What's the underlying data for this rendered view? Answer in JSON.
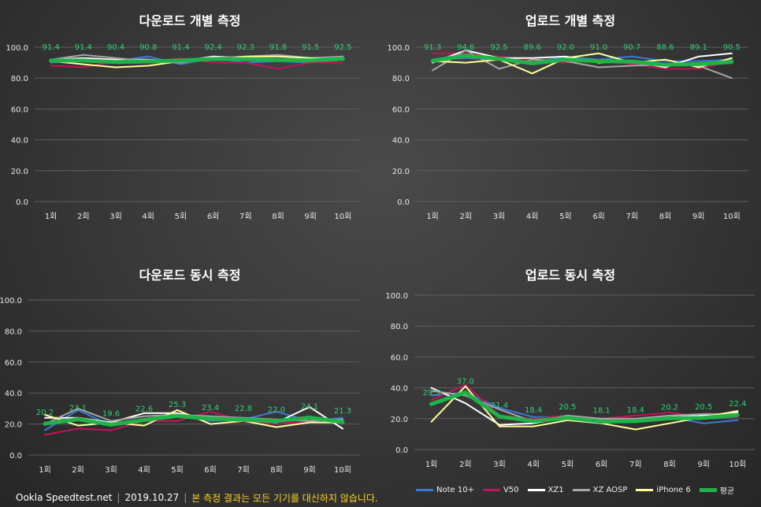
{
  "footer": {
    "brand": "Ookla Speedtest.net",
    "date": "2019.10.27",
    "note": "본 측정 결과는 모든 기기를 대신하지 않습니다."
  },
  "legend": [
    {
      "name": "Note 10+",
      "color": "#3c78d8"
    },
    {
      "name": "V50",
      "color": "#c0145a"
    },
    {
      "name": "XZ1",
      "color": "#ffffff"
    },
    {
      "name": "XZ AOSP",
      "color": "#a6a6a6"
    },
    {
      "name": "iPhone 6",
      "color": "#ffff99"
    },
    {
      "name": "평균",
      "color": "#1fb34a"
    }
  ],
  "chart_data": [
    {
      "type": "line",
      "title": "다운로드 개별 측정",
      "categories": [
        "1회",
        "2회",
        "3회",
        "4회",
        "5회",
        "6회",
        "7회",
        "8회",
        "9회",
        "10회"
      ],
      "y_ticks": [
        "0.0",
        "20.0",
        "40.0",
        "60.0",
        "80.0",
        "100.0"
      ],
      "ylim": [
        0,
        100
      ],
      "series": [
        {
          "name": "Note 10+",
          "values": [
            90,
            92,
            91,
            94,
            89,
            93,
            90,
            91,
            90,
            92
          ]
        },
        {
          "name": "V50",
          "values": [
            88,
            87,
            91,
            90,
            93,
            90,
            90,
            86,
            90,
            90
          ]
        },
        {
          "name": "XZ1",
          "values": [
            92,
            93,
            92,
            92,
            91,
            94,
            93,
            92,
            91,
            93
          ]
        },
        {
          "name": "XZ AOSP",
          "values": [
            92,
            95,
            93,
            91,
            90,
            93,
            94,
            95,
            93,
            94
          ]
        },
        {
          "name": "iPhone 6",
          "values": [
            91,
            89,
            87,
            88,
            91,
            92,
            94,
            94,
            93,
            92
          ]
        },
        {
          "name": "평균",
          "values": [
            91.4,
            91.4,
            90.4,
            90.8,
            91.4,
            92.4,
            92.3,
            91.8,
            91.5,
            92.5
          ]
        }
      ],
      "data_labels": [
        "91.4",
        "91.4",
        "90.4",
        "90.8",
        "91.4",
        "92.4",
        "92.3",
        "91.8",
        "91.5",
        "92.5"
      ]
    },
    {
      "type": "line",
      "title": "업로드 개별 측정",
      "categories": [
        "1회",
        "2회",
        "3회",
        "4회",
        "5회",
        "6회",
        "7회",
        "8회",
        "9회",
        "10회"
      ],
      "y_ticks": [
        "0.0",
        "20.0",
        "40.0",
        "60.0",
        "80.0",
        "100.0"
      ],
      "ylim": [
        0,
        100
      ],
      "series": [
        {
          "name": "Note 10+",
          "values": [
            92,
            93,
            92,
            90,
            94,
            92,
            94,
            91,
            91,
            92
          ]
        },
        {
          "name": "V50",
          "values": [
            96,
            96,
            94,
            91,
            90,
            92,
            89,
            86,
            86,
            91
          ]
        },
        {
          "name": "XZ1",
          "values": [
            90,
            98,
            93,
            93,
            94,
            90,
            91,
            87,
            94,
            96
          ]
        },
        {
          "name": "XZ AOSP",
          "values": [
            85,
            98,
            86,
            92,
            91,
            87,
            88,
            89,
            88,
            80
          ]
        },
        {
          "name": "iPhone 6",
          "values": [
            91,
            90,
            92,
            83,
            93,
            96,
            90,
            92,
            87,
            93
          ]
        },
        {
          "name": "평균",
          "values": [
            91.3,
            94.6,
            92.5,
            89.6,
            92.0,
            91.0,
            90.7,
            88.6,
            89.1,
            90.5
          ]
        }
      ],
      "data_labels": [
        "91.3",
        "94.6",
        "92.5",
        "89.6",
        "92.0",
        "91.0",
        "90.7",
        "88.6",
        "89.1",
        "90.5"
      ]
    },
    {
      "type": "line",
      "title": "다운로드 동시 측정",
      "categories": [
        "1회",
        "2회",
        "3회",
        "4회",
        "5회",
        "6회",
        "7회",
        "8회",
        "9회",
        "10회"
      ],
      "y_ticks": [
        "0.0",
        "20.0",
        "40.0",
        "60.0",
        "80.0",
        "100.0"
      ],
      "ylim": [
        0,
        100
      ],
      "series": [
        {
          "name": "Note 10+",
          "values": [
            16,
            29,
            19,
            22,
            25,
            22,
            23,
            28,
            22,
            24
          ]
        },
        {
          "name": "V50",
          "values": [
            13,
            17,
            16,
            22,
            22,
            28,
            22,
            20,
            22,
            21
          ]
        },
        {
          "name": "XZ1",
          "values": [
            24,
            24,
            21,
            27,
            27,
            23,
            23,
            21,
            31,
            17
          ]
        },
        {
          "name": "XZ AOSP",
          "values": [
            20,
            30,
            22,
            25,
            26,
            25,
            24,
            23,
            22,
            23
          ]
        },
        {
          "name": "iPhone 6",
          "values": [
            26,
            19,
            21,
            19,
            29,
            20,
            22,
            18,
            21,
            21
          ]
        },
        {
          "name": "평균",
          "values": [
            20.2,
            23.1,
            19.6,
            22.6,
            25.3,
            23.4,
            22.8,
            22.0,
            24.1,
            21.3
          ]
        }
      ],
      "data_labels": [
        "20.2",
        "23.1",
        "19.6",
        "22.6",
        "25.3",
        "23.4",
        "22.8",
        "22.0",
        "24.1",
        "21.3"
      ]
    },
    {
      "type": "line",
      "title": "업로드 동시 측정",
      "categories": [
        "1회",
        "2회",
        "3회",
        "4회",
        "5회",
        "6회",
        "7회",
        "8회",
        "9회",
        "10회"
      ],
      "y_ticks": [
        "0.0",
        "20.0",
        "40.0",
        "60.0",
        "80.0",
        "100.0"
      ],
      "ylim": [
        0,
        100
      ],
      "series": [
        {
          "name": "Note 10+",
          "values": [
            35,
            37,
            27,
            21,
            21,
            19,
            18,
            21,
            17,
            19
          ]
        },
        {
          "name": "V50",
          "values": [
            32,
            42,
            22,
            20,
            22,
            20,
            22,
            24,
            21,
            21
          ]
        },
        {
          "name": "XZ1",
          "values": [
            40,
            30,
            16,
            17,
            21,
            19,
            19,
            21,
            22,
            24
          ]
        },
        {
          "name": "XZ AOSP",
          "values": [
            38,
            35,
            26,
            18,
            22,
            20,
            20,
            22,
            23,
            23
          ]
        },
        {
          "name": "iPhone 6",
          "values": [
            18,
            41,
            15,
            15,
            19,
            17,
            13,
            17,
            21,
            25
          ]
        },
        {
          "name": "평균",
          "values": [
            29.5,
            37.0,
            21.4,
            18.4,
            20.5,
            18.1,
            18.4,
            20.2,
            20.5,
            22.4
          ]
        }
      ],
      "data_labels": [
        "29.5",
        "37.0",
        "21.4",
        "18.4",
        "20.5",
        "18.1",
        "18.4",
        "20.2",
        "20.5",
        "22.4"
      ]
    }
  ]
}
